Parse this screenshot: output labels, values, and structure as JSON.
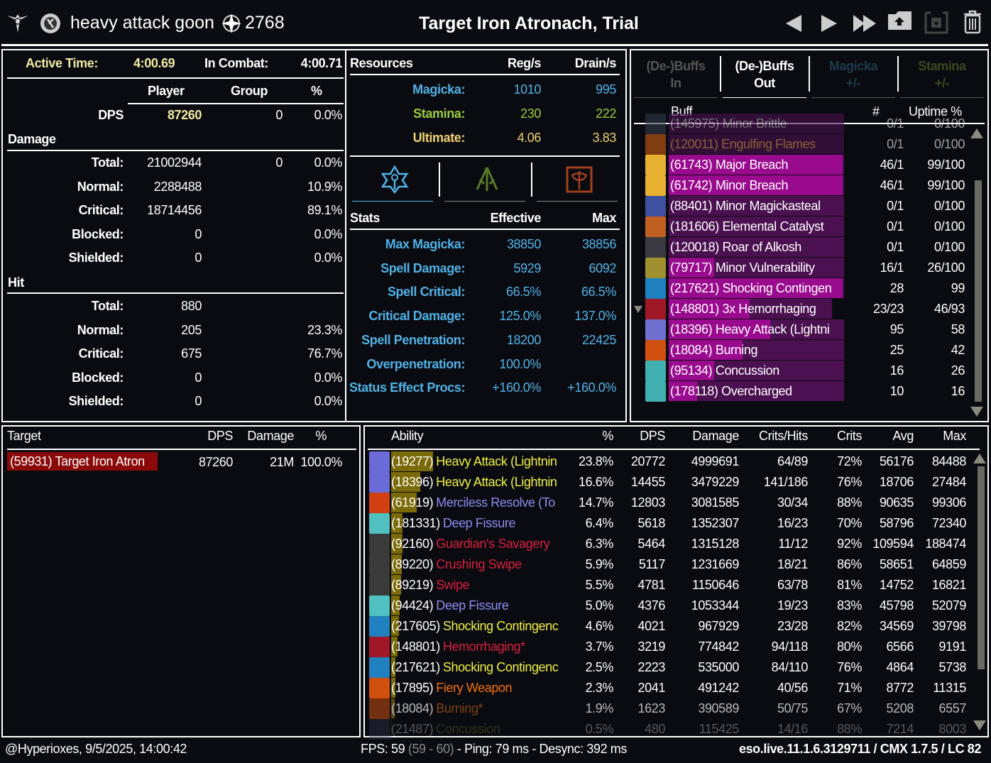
{
  "topbar": {
    "player_name": "heavy attack goon",
    "champion_points": "2768",
    "title": "Target Iron Atronach, Trial",
    "icons": [
      "class-emblem-icon",
      "alliance-icon",
      "champion-icon",
      "previous-icon",
      "next-icon",
      "last-icon",
      "upload-icon",
      "save-icon",
      "trash-icon"
    ]
  },
  "overview": {
    "active_time_label": "Active Time:",
    "active_time": "4:00.69",
    "in_combat_label": "In Combat:",
    "in_combat": "4:00.71",
    "col_player": "Player",
    "col_group": "Group",
    "col_pct": "%",
    "dps_label": "DPS",
    "dps_player": "87260",
    "dps_group": "0",
    "dps_pct": "0.0%",
    "damage_title": "Damage",
    "damage_rows": [
      {
        "label": "Total:",
        "player": "21002944",
        "group": "0",
        "pct": "0.0%"
      },
      {
        "label": "Normal:",
        "player": "2288488",
        "group": "",
        "pct": "10.9%"
      },
      {
        "label": "Critical:",
        "player": "18714456",
        "group": "",
        "pct": "89.1%"
      },
      {
        "label": "Blocked:",
        "player": "0",
        "group": "",
        "pct": "0.0%"
      },
      {
        "label": "Shielded:",
        "player": "0",
        "group": "",
        "pct": "0.0%"
      }
    ],
    "hit_title": "Hit",
    "hit_rows": [
      {
        "label": "Total:",
        "player": "880",
        "group": "",
        "pct": ""
      },
      {
        "label": "Normal:",
        "player": "205",
        "group": "",
        "pct": "23.3%"
      },
      {
        "label": "Critical:",
        "player": "675",
        "group": "",
        "pct": "76.7%"
      },
      {
        "label": "Blocked:",
        "player": "0",
        "group": "",
        "pct": "0.0%"
      },
      {
        "label": "Shielded:",
        "player": "0",
        "group": "",
        "pct": "0.0%"
      }
    ]
  },
  "resources": {
    "title": "Resources",
    "col_reg": "Reg/s",
    "col_drain": "Drain/s",
    "rows": [
      {
        "label": "Magicka:",
        "reg": "1010",
        "drain": "995",
        "color": "#4fb2e6"
      },
      {
        "label": "Stamina:",
        "reg": "230",
        "drain": "222",
        "color": "#9ccc3c"
      },
      {
        "label": "Ultimate:",
        "reg": "4.06",
        "drain": "3.83",
        "color": "#f0d070"
      }
    ],
    "stat_tabs": [
      {
        "icon": "magicka-stats-icon",
        "color": "#4fb2e6",
        "active": true
      },
      {
        "icon": "stamina-stats-icon",
        "color": "#5a7a2a",
        "active": false
      },
      {
        "icon": "health-stats-icon",
        "color": "#a0401c",
        "active": false
      }
    ]
  },
  "stats": {
    "title": "Stats",
    "col_effective": "Effective",
    "col_max": "Max",
    "color": "#4fb2e6",
    "rows": [
      {
        "label": "Max Magicka:",
        "effective": "38850",
        "max": "38856"
      },
      {
        "label": "Spell Damage:",
        "effective": "5929",
        "max": "6092"
      },
      {
        "label": "Spell Critical:",
        "effective": "66.5%",
        "max": "66.5%"
      },
      {
        "label": "Critical Damage:",
        "effective": "125.0%",
        "max": "137.0%"
      },
      {
        "label": "Spell Penetration:",
        "effective": "18200",
        "max": "22425"
      },
      {
        "label": "Overpenetration:",
        "effective": "100.0%",
        "max": ""
      },
      {
        "label": "Status Effect Procs:",
        "effective": "+160.0%",
        "max": "+160.0%"
      }
    ]
  },
  "buffs": {
    "tabs": [
      {
        "line1": "(De-)Buffs",
        "line2": "In",
        "color": "#555555"
      },
      {
        "line1": "(De-)Buffs",
        "line2": "Out",
        "color": "#ffffff"
      },
      {
        "line1": "Magicka",
        "line2": "+/-",
        "color": "#1e3a4a"
      },
      {
        "line1": "Stamina",
        "line2": "+/-",
        "color": "#3a4a1e"
      }
    ],
    "col_buff": "Buff",
    "col_count": "#",
    "col_uptime": "Uptime %",
    "rows": [
      {
        "name": "(145975) Minor Brittle",
        "count": "0/1",
        "uptime": "0/100",
        "max": 100,
        "up": 0,
        "dim": true,
        "color": "#bbbbbb",
        "icon": "#33384a"
      },
      {
        "name": "(120011) Engulfing Flames",
        "count": "0/1",
        "uptime": "0/100",
        "max": 100,
        "up": 0,
        "dim": true,
        "color": "#d8a050",
        "icon": "#d06010"
      },
      {
        "name": "(61743) Major Breach",
        "count": "46/1",
        "uptime": "99/100",
        "max": 100,
        "up": 99,
        "color": "#ffffff",
        "icon": "#e8b030"
      },
      {
        "name": "(61742) Minor Breach",
        "count": "46/1",
        "uptime": "99/100",
        "max": 100,
        "up": 99,
        "color": "#ffffff",
        "icon": "#e8b030"
      },
      {
        "name": "(88401) Minor Magickasteal",
        "count": "0/1",
        "uptime": "0/100",
        "max": 100,
        "up": 0,
        "color": "#ffffff",
        "icon": "#4050a0"
      },
      {
        "name": "(181606) Elemental Catalyst",
        "count": "0/1",
        "uptime": "0/100",
        "max": 100,
        "up": 0,
        "color": "#ffffff",
        "icon": "#c06020"
      },
      {
        "name": "(120018) Roar of Alkosh",
        "count": "0/1",
        "uptime": "0/100",
        "max": 100,
        "up": 0,
        "color": "#ffffff",
        "icon": "#3a3a40"
      },
      {
        "name": "(79717) Minor Vulnerability",
        "count": "16/1",
        "uptime": "26/100",
        "max": 100,
        "up": 26,
        "color": "#ffffff",
        "icon": "#a09030"
      },
      {
        "name": "(217621) Shocking Contingen",
        "count": "28",
        "uptime": "99",
        "max": 100,
        "up": 99,
        "color": "#ffffff",
        "icon": "#2080c0"
      },
      {
        "name": "(148801) 3x Hemorrhaging",
        "count": "23/23",
        "uptime": "46/93",
        "max": 93,
        "up": 46,
        "color": "#ffffff",
        "icon": "#a01828",
        "expand": true
      },
      {
        "name": "(18396) Heavy Attack (Lightni",
        "count": "95",
        "uptime": "58",
        "max": 100,
        "up": 58,
        "color": "#ffffff",
        "icon": "#7070d0"
      },
      {
        "name": "(18084) Burning",
        "count": "25",
        "uptime": "42",
        "max": 100,
        "up": 42,
        "color": "#ffffff",
        "icon": "#d05010"
      },
      {
        "name": "(95134) Concussion",
        "count": "16",
        "uptime": "26",
        "max": 100,
        "up": 26,
        "color": "#ffffff",
        "icon": "#40b0b0"
      },
      {
        "name": "(178118) Overcharged",
        "count": "10",
        "uptime": "16",
        "max": 100,
        "up": 16,
        "color": "#ffffff",
        "icon": "#40b0b0"
      }
    ]
  },
  "targets": {
    "col_target": "Target",
    "col_dps": "DPS",
    "col_damage": "Damage",
    "col_pct": "%",
    "rows": [
      {
        "name": "(59931) Target Iron Atron",
        "dps": "87260",
        "damage": "21M",
        "pct": "100.0%"
      }
    ]
  },
  "abilities": {
    "columns": [
      "Ability",
      "%",
      "DPS",
      "Damage",
      "Crits/Hits",
      "Crits",
      "Avg",
      "Max"
    ],
    "rows": [
      {
        "id": "(19277)",
        "name": "Heavy Attack (Lightnin",
        "pct": "23.8%",
        "share": 23.8,
        "dps": "20772",
        "damage": "4999691",
        "crits_hits": "64/89",
        "crits": "72%",
        "avg": "56176",
        "max": "84488",
        "color": "#f0f040",
        "icon": "#6a6ad8"
      },
      {
        "id": "(18396)",
        "name": "Heavy Attack (Lightnin",
        "pct": "16.6%",
        "share": 16.6,
        "dps": "14455",
        "damage": "3479229",
        "crits_hits": "141/186",
        "crits": "76%",
        "avg": "18706",
        "max": "27484",
        "color": "#f0f040",
        "icon": "#6a6ad8"
      },
      {
        "id": "(61919)",
        "name": "Merciless Resolve (To",
        "pct": "14.7%",
        "share": 14.7,
        "dps": "12803",
        "damage": "3081585",
        "crits_hits": "30/34",
        "crits": "88%",
        "avg": "90635",
        "max": "99306",
        "color": "#8c8cf0",
        "icon": "#d04010"
      },
      {
        "id": "(181331)",
        "name": "Deep Fissure",
        "pct": "6.4%",
        "share": 6.4,
        "dps": "5618",
        "damage": "1352307",
        "crits_hits": "16/23",
        "crits": "70%",
        "avg": "58796",
        "max": "72340",
        "color": "#8c8cf0",
        "icon": "#50c0c0"
      },
      {
        "id": "(92160)",
        "name": "Guardian's Savagery",
        "pct": "6.3%",
        "share": 6.3,
        "dps": "5464",
        "damage": "1315128",
        "crits_hits": "11/12",
        "crits": "92%",
        "avg": "109594",
        "max": "188474",
        "color": "#d8203c",
        "icon": "#3a3a3a"
      },
      {
        "id": "(89220)",
        "name": "Crushing Swipe",
        "pct": "5.9%",
        "share": 5.9,
        "dps": "5117",
        "damage": "1231669",
        "crits_hits": "18/21",
        "crits": "86%",
        "avg": "58651",
        "max": "64859",
        "color": "#d8203c",
        "icon": "#3a3a3a"
      },
      {
        "id": "(89219)",
        "name": "Swipe",
        "pct": "5.5%",
        "share": 5.5,
        "dps": "4781",
        "damage": "1150646",
        "crits_hits": "63/78",
        "crits": "81%",
        "avg": "14752",
        "max": "16821",
        "color": "#d8203c",
        "icon": "#3a3a3a"
      },
      {
        "id": "(94424)",
        "name": "Deep Fissure",
        "pct": "5.0%",
        "share": 5.0,
        "dps": "4376",
        "damage": "1053344",
        "crits_hits": "19/23",
        "crits": "83%",
        "avg": "45798",
        "max": "52079",
        "color": "#8c8cf0",
        "icon": "#50c0c0"
      },
      {
        "id": "(217605)",
        "name": "Shocking Contingenc",
        "pct": "4.6%",
        "share": 4.6,
        "dps": "4021",
        "damage": "967929",
        "crits_hits": "23/28",
        "crits": "82%",
        "avg": "34569",
        "max": "39798",
        "color": "#f0f040",
        "icon": "#2080c0"
      },
      {
        "id": "(148801)",
        "name": "Hemorrhaging*",
        "pct": "3.7%",
        "share": 3.7,
        "dps": "3219",
        "damage": "774842",
        "crits_hits": "94/118",
        "crits": "80%",
        "avg": "6566",
        "max": "9191",
        "color": "#d8203c",
        "icon": "#a01828"
      },
      {
        "id": "(217621)",
        "name": "Shocking Contingenc",
        "pct": "2.5%",
        "share": 2.5,
        "dps": "2223",
        "damage": "535000",
        "crits_hits": "84/110",
        "crits": "76%",
        "avg": "4864",
        "max": "5738",
        "color": "#f0f040",
        "icon": "#2080c0"
      },
      {
        "id": "(17895)",
        "name": "Fiery Weapon",
        "pct": "2.3%",
        "share": 2.3,
        "dps": "2041",
        "damage": "491242",
        "crits_hits": "40/56",
        "crits": "71%",
        "avg": "8772",
        "max": "11315",
        "color": "#f07010",
        "icon": "#d05010"
      },
      {
        "id": "(18084)",
        "name": "Burning*",
        "pct": "1.9%",
        "share": 1.9,
        "dps": "1623",
        "damage": "390589",
        "crits_hits": "50/75",
        "crits": "67%",
        "avg": "5208",
        "max": "6557",
        "color": "#b05a10",
        "icon": "#a04010",
        "dim": 0.7
      },
      {
        "id": "(21487)",
        "name": "Concussion",
        "pct": "0.5%",
        "share": 0.5,
        "dps": "480",
        "damage": "115425",
        "crits_hits": "14/16",
        "crits": "88%",
        "avg": "7214",
        "max": "8003",
        "color": "#8a8a30",
        "icon": "#404060",
        "dim": 0.3
      }
    ]
  },
  "footer": {
    "account": "@Hyperioxes, 9/5/2025, 14:00:42",
    "fps_label": "FPS: 59",
    "fps_range": "(59 - 60)",
    "net": "- Ping: 79 ms - Desync: 392 ms",
    "version": "eso.live.11.1.6.3129711 / CMX 1.7.5 / LC 82"
  }
}
